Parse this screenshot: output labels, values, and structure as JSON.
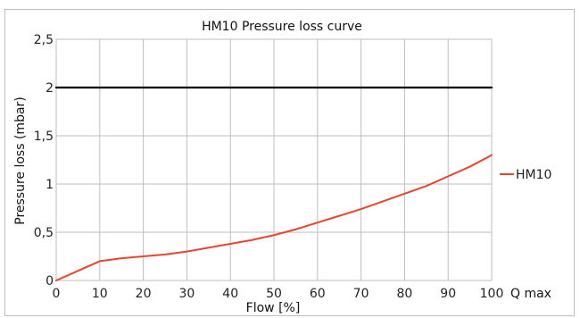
{
  "chart_data": {
    "type": "line",
    "title": "HM10 Pressure loss curve",
    "xlabel": "Flow [%]",
    "xlabel_extra": "Q max",
    "ylabel": "Pressure loss (mbar)",
    "xlim": [
      0,
      100
    ],
    "ylim": [
      0,
      2.5
    ],
    "x_ticks": [
      "0",
      "10",
      "20",
      "30",
      "40",
      "50",
      "60",
      "70",
      "80",
      "90",
      "100"
    ],
    "y_ticks": [
      "0",
      "0,5",
      "1",
      "1,5",
      "2",
      "2,5"
    ],
    "grid": true,
    "legend": "right",
    "series": [
      {
        "name": "HM10",
        "color": "#e8452f",
        "x": [
          0,
          5,
          10,
          15,
          20,
          25,
          30,
          35,
          40,
          45,
          50,
          55,
          60,
          65,
          70,
          75,
          80,
          85,
          90,
          95,
          100
        ],
        "y": [
          0,
          0.1,
          0.2,
          0.23,
          0.25,
          0.27,
          0.3,
          0.34,
          0.38,
          0.42,
          0.47,
          0.53,
          0.6,
          0.67,
          0.74,
          0.82,
          0.9,
          0.98,
          1.08,
          1.18,
          1.3
        ]
      },
      {
        "color": "#000000",
        "x": [
          0,
          100
        ],
        "y": [
          2,
          2
        ]
      }
    ]
  }
}
